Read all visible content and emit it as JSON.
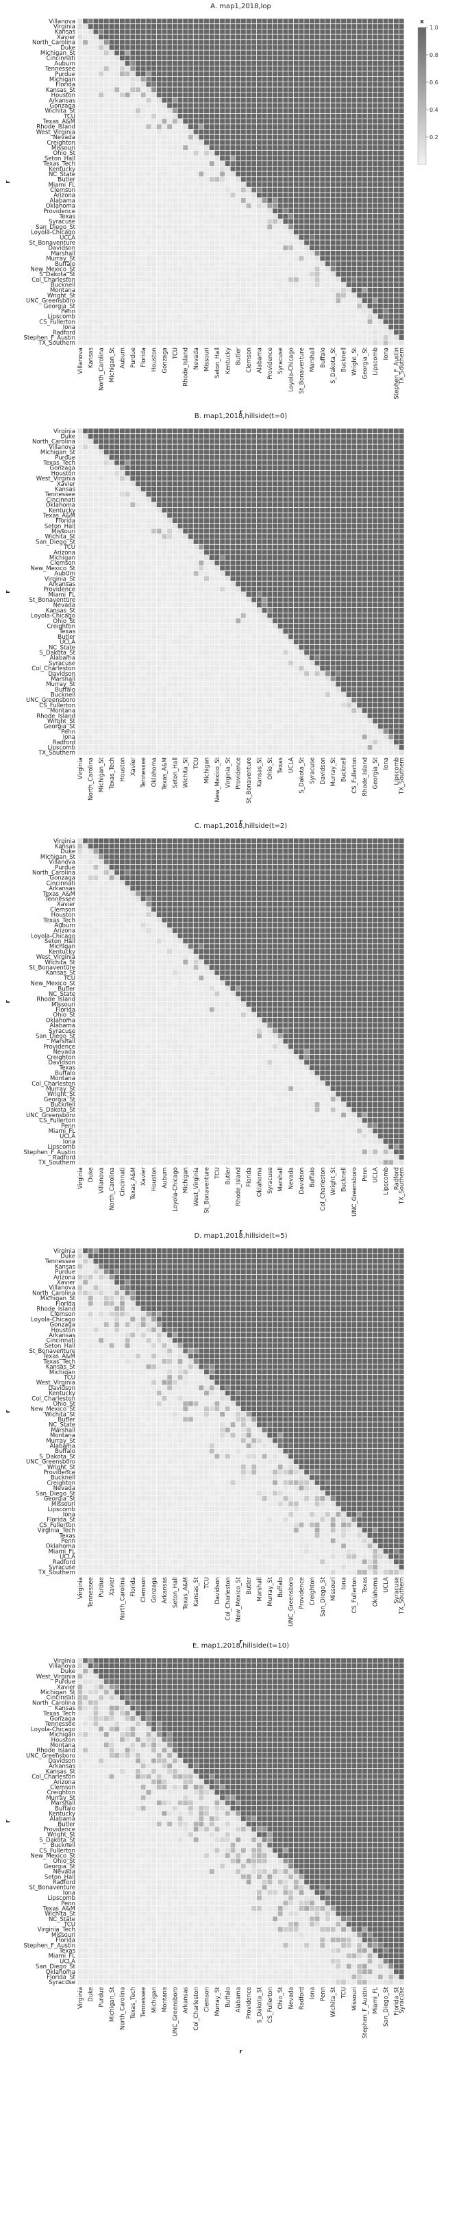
{
  "figure": {
    "colorbar": {
      "label": "x",
      "ticks": [
        "1.0",
        "0.8",
        "0.6",
        "0.4",
        "0.2"
      ],
      "tick_values": [
        1.0,
        0.8,
        0.6,
        0.4,
        0.2
      ],
      "color_low": "#f2f2f2",
      "color_high": "#666666"
    }
  },
  "chart_data": [
    {
      "type": "heatmap",
      "title": "A. map1,2018,lop",
      "xlabel": "r",
      "ylabel": "r",
      "vlim": [
        0,
        1
      ],
      "fuzz": 0.3,
      "categories": [
        "Villanova",
        "Virginia",
        "Kansas",
        "Xavier",
        "North_Carolina",
        "Duke",
        "Michigan_St",
        "Cincinnati",
        "Auburn",
        "Tennessee",
        "Purdue",
        "Michigan",
        "Florida",
        "Kansas_St",
        "Houston",
        "Arkansas",
        "Gonzaga",
        "Wichita_St",
        "TCU",
        "Texas_A&M",
        "Rhode_Island",
        "West_Virginia",
        "Nevada",
        "Creighton",
        "Missouri",
        "Ohio_St",
        "Seton_Hall",
        "Texas_Tech",
        "Kentucky",
        "NC_State",
        "Butler",
        "Miami_FL",
        "Clemson",
        "Arizona",
        "Alabama",
        "Oklahoma",
        "Providence",
        "Texas",
        "Syracuse",
        "San_Diego_St",
        "Loyola-Chicago",
        "UCLA",
        "St_Bonaventure",
        "Davidson",
        "Marshall",
        "Murray_St",
        "Buffalo",
        "New_Mexico_St",
        "S_Dakota_St",
        "Col_Charleston",
        "Bucknell",
        "Montana",
        "Wright_St",
        "UNC_Greensboro",
        "Georgia_St",
        "Penn",
        "Lipscomb",
        "CS_Fullerton",
        "Iona",
        "Radford",
        "Stephen_F_Austin",
        "TX_Southern"
      ],
      "x_tick_labels": [
        "Villanova",
        "Kansas",
        "North_Carolina",
        "Michigan_St",
        "Auburn",
        "Purdue",
        "Florida",
        "Houston",
        "Gonzaga",
        "TCU",
        "Rhode_Island",
        "Nevada",
        "Missouri",
        "Seton_Hall",
        "Kentucky",
        "Butler",
        "Clemson",
        "Alabama",
        "Providence",
        "Syracuse",
        "Loyola-Chicago",
        "St_Bonaventure",
        "Marshall",
        "Buffalo",
        "S_Dakota_St",
        "Bucknell",
        "Wright_St",
        "Georgia_St",
        "Lipscomb",
        "Iona",
        "Stephen_F_Austin",
        "TX_Southern"
      ],
      "y_tick_labels": [
        "Villanova",
        "Virginia",
        "Kansas",
        "Xavier",
        "North_Carolina",
        "Duke",
        "Michigan_St",
        "Cincinnati",
        "Auburn",
        "Tennessee",
        "Purdue",
        "Michigan",
        "Florida",
        "Kansas_St",
        "Houston",
        "Arkansas",
        "Gonzaga",
        "Wichita_St",
        "TCU",
        "Texas_A&M",
        "Rhode_Island",
        "West_Virginia",
        "Nevada",
        "Creighton",
        "Missouri",
        "Ohio_St",
        "Seton_Hall",
        "Texas_Tech",
        "Kentucky",
        "NC_State",
        "Butler",
        "Miami_FL",
        "Clemson",
        "Arizona",
        "Alabama",
        "Oklahoma",
        "Providence",
        "Texas",
        "Syracuse",
        "San_Diego_St",
        "Loyola-Chicago",
        "UCLA",
        "St_Bonaventure",
        "Davidson",
        "Marshall",
        "Murray_St",
        "Buffalo",
        "New_Mexico_St",
        "S_Dakota_St",
        "Col_Charleston",
        "Bucknell",
        "Montana",
        "Wright_St",
        "UNC_Greensboro",
        "Georgia_St",
        "Penn",
        "Lipscomb",
        "CS_Fullerton",
        "Iona",
        "Radford",
        "Stephen_F_Austin",
        "TX_Southern"
      ]
    },
    {
      "type": "heatmap",
      "title": "B. map1,2018,hillside(t=0)",
      "xlabel": "r",
      "ylabel": "r",
      "vlim": [
        0,
        1
      ],
      "fuzz": 0.15,
      "categories": [
        "Virginia",
        "Duke",
        "North_Carolina",
        "Villanova",
        "Michigan_St",
        "Purdue",
        "Texas_Tech",
        "Gonzaga",
        "Houston",
        "West_Virginia",
        "Xavier",
        "Kansas",
        "Tennessee",
        "Cincinnati",
        "Oklahoma",
        "Kentucky",
        "Texas_A&M",
        "Florida",
        "Seton_Hall",
        "Missouri",
        "Wichita_St",
        "San_Diego_St",
        "TCU",
        "Arizona",
        "Michigan",
        "Clemson",
        "New_Mexico_St",
        "Auburn",
        "Virginia_St",
        "Arkansas",
        "Providence",
        "Miami_FL",
        "St_Bonaventure",
        "Nevada",
        "Kansas_St",
        "Loyola-Chicago",
        "Ohio_St",
        "Creighton",
        "Texas",
        "Butler",
        "UCLA",
        "NC_State",
        "S_Dakota_St",
        "Alabama",
        "Syracuse",
        "Col_Charleston",
        "Davidson",
        "Marshall",
        "Murray_St",
        "Buffalo",
        "Bucknell",
        "UNC_Greensboro",
        "CS_Fullerton",
        "Montana",
        "Rhode_Island",
        "Wright_St",
        "Georgia_St",
        "Penn",
        "Iona",
        "Radford",
        "Lipscomb",
        "TX_Southern"
      ],
      "x_tick_labels": [
        "Virginia",
        "North_Carolina",
        "Michigan_St",
        "Texas_Tech",
        "Houston",
        "Xavier",
        "Tennessee",
        "Oklahoma",
        "Texas_A&M",
        "Seton_Hall",
        "Wichita_St",
        "TCU",
        "Michigan",
        "New_Mexico_St",
        "Virginia_St",
        "Providence",
        "St_Bonaventure",
        "Kansas_St",
        "Ohio_St",
        "Texas",
        "UCLA",
        "S_Dakota_St",
        "Syracuse",
        "Davidson",
        "Murray_St",
        "Bucknell",
        "CS_Fullerton",
        "Rhode_Island",
        "Georgia_St",
        "Iona",
        "Lipscomb",
        "TX_Southern"
      ],
      "y_tick_labels": [
        "Virginia",
        "Duke",
        "North_Carolina",
        "Villanova",
        "Michigan_St",
        "Purdue",
        "Texas_Tech",
        "Gonzaga",
        "Houston",
        "West_Virginia",
        "Xavier",
        "Kansas",
        "Tennessee",
        "Cincinnati",
        "Oklahoma",
        "Kentucky",
        "Texas_A&M",
        "Florida",
        "Seton_Hall",
        "Missouri",
        "Wichita_St",
        "San_Diego_St",
        "TCU",
        "Arizona",
        "Michigan",
        "Clemson",
        "New_Mexico_St",
        "Auburn",
        "Virginia_St",
        "Arkansas",
        "Providence",
        "Miami_FL",
        "St_Bonaventure",
        "Nevada",
        "Kansas_St",
        "Loyola-Chicago",
        "Ohio_St",
        "Creighton",
        "Texas",
        "Butler",
        "UCLA",
        "NC_State",
        "S_Dakota_St",
        "Alabama",
        "Syracuse",
        "Col_Charleston",
        "Davidson",
        "Marshall",
        "Murray_St",
        "Buffalo",
        "Bucknell",
        "UNC_Greensboro",
        "CS_Fullerton",
        "Montana",
        "Rhode_Island",
        "Wright_St",
        "Georgia_St",
        "Penn",
        "Iona",
        "Radford",
        "Lipscomb",
        "TX_Southern"
      ]
    },
    {
      "type": "heatmap",
      "title": "C. map1,2018,hillside(t=2)",
      "xlabel": "r",
      "ylabel": "r",
      "vlim": [
        0,
        1
      ],
      "fuzz": 0.2,
      "categories": [
        "Virginia",
        "Kansas",
        "Duke",
        "Michigan_St",
        "Villanova",
        "Purdue",
        "North_Carolina",
        "Gonzaga",
        "Cincinnati",
        "Arkansas",
        "Texas_A&M",
        "Tennessee",
        "Xavier",
        "Clemson",
        "Houston",
        "Texas_Tech",
        "Auburn",
        "Arizona",
        "Loyola-Chicago",
        "Seton_Hall",
        "Michigan",
        "Kentucky",
        "West_Virginia",
        "Wichita_St",
        "St_Bonaventure",
        "Kansas_St",
        "TCU",
        "New_Mexico_St",
        "Butler",
        "NC_State",
        "Rhode_Island",
        "Missouri",
        "Florida",
        "Ohio_St",
        "Oklahoma",
        "Alabama",
        "Syracuse",
        "San_Diego_St",
        "Marshall",
        "Providence",
        "Nevada",
        "Creighton",
        "Davidson",
        "Texas",
        "Buffalo",
        "Montana",
        "Col_Charleston",
        "Murray_St",
        "Wright_St",
        "Georgia_St",
        "Bucknell",
        "S_Dakota_St",
        "UNC_Greensboro",
        "CS_Fullerton",
        "Penn",
        "Miami_FL",
        "UCLA",
        "Iona",
        "Lipscomb",
        "Stephen_F_Austin",
        "Radford",
        "TX_Southern"
      ],
      "x_tick_labels": [
        "Virginia",
        "Duke",
        "Villanova",
        "North_Carolina",
        "Cincinnati",
        "Texas_A&M",
        "Xavier",
        "Houston",
        "Auburn",
        "Loyola-Chicago",
        "Michigan",
        "West_Virginia",
        "St_Bonaventure",
        "TCU",
        "Butler",
        "Rhode_Island",
        "Florida",
        "Oklahoma",
        "Syracuse",
        "Marshall",
        "Nevada",
        "Davidson",
        "Buffalo",
        "Col_Charleston",
        "Wright_St",
        "Bucknell",
        "UNC_Greensboro",
        "Penn",
        "UCLA",
        "Lipscomb",
        "Radford",
        "TX_Southern"
      ],
      "y_tick_labels": [
        "Virginia",
        "Kansas",
        "Duke",
        "Michigan_St",
        "Villanova",
        "Purdue",
        "North_Carolina",
        "Gonzaga",
        "Cincinnati",
        "Arkansas",
        "Texas_A&M",
        "Tennessee",
        "Xavier",
        "Clemson",
        "Houston",
        "Texas_Tech",
        "Auburn",
        "Arizona",
        "Loyola-Chicago",
        "Seton_Hall",
        "Michigan",
        "Kentucky",
        "West_Virginia",
        "Wichita_St",
        "St_Bonaventure",
        "Kansas_St",
        "TCU",
        "New_Mexico_St",
        "Butler",
        "NC_State",
        "Rhode_Island",
        "Missouri",
        "Florida",
        "Ohio_St",
        "Oklahoma",
        "Alabama",
        "Syracuse",
        "San_Diego_St",
        "Marshall",
        "Providence",
        "Nevada",
        "Creighton",
        "Davidson",
        "Texas",
        "Buffalo",
        "Montana",
        "Col_Charleston",
        "Murray_St",
        "Wright_St",
        "Georgia_St",
        "Bucknell",
        "S_Dakota_St",
        "UNC_Greensboro",
        "CS_Fullerton",
        "Penn",
        "Miami_FL",
        "UCLA",
        "Iona",
        "Lipscomb",
        "Stephen_F_Austin",
        "Radford",
        "TX_Southern"
      ]
    },
    {
      "type": "heatmap",
      "title": "D. map1,2018,hillside(t=5)",
      "xlabel": "r",
      "ylabel": "r",
      "vlim": [
        0,
        1
      ],
      "fuzz": 0.55,
      "categories": [
        "Virginia",
        "Duke",
        "Tennessee",
        "Kansas",
        "Purdue",
        "Arizona",
        "Xavier",
        "Villanova",
        "North_Carolina",
        "Michigan_St",
        "Florida",
        "Rhode_Island",
        "Clemson",
        "Loyola-Chicago",
        "Gonzaga",
        "Houston",
        "Arkansas",
        "Cincinnati",
        "Seton_Hall",
        "St_Bonaventure",
        "Texas_A&M",
        "Texas_Tech",
        "Kansas_St",
        "Michigan",
        "TCU",
        "West_Virginia",
        "Davidson",
        "Kentucky",
        "Col_Charleston",
        "Ohio_St",
        "New_Mexico_St",
        "Wichita_St",
        "Butler",
        "NC_State",
        "Marshall",
        "Montana",
        "Murray_St",
        "Alabama",
        "Buffalo",
        "S_Dakota_St",
        "UNC_Greensboro",
        "Wright_St",
        "Providence",
        "Bucknell",
        "Creighton",
        "Nevada",
        "San_Diego_St",
        "Georgia_St",
        "Missouri",
        "Lipscomb",
        "Iona",
        "Florida_St",
        "CS_Fullerton",
        "Virginia_Tech",
        "Texas",
        "Penn",
        "Oklahoma",
        "Miami_FL",
        "UCLA",
        "Radford",
        "Syracuse",
        "TX_Southern"
      ],
      "x_tick_labels": [
        "Virginia",
        "Tennessee",
        "Purdue",
        "Xavier",
        "North_Carolina",
        "Florida",
        "Clemson",
        "Gonzaga",
        "Arkansas",
        "Seton_Hall",
        "Texas_A&M",
        "Kansas_St",
        "TCU",
        "Davidson",
        "Col_Charleston",
        "New_Mexico_St",
        "Butler",
        "Marshall",
        "Murray_St",
        "Buffalo",
        "UNC_Greensboro",
        "Providence",
        "Creighton",
        "San_Diego_St",
        "Missouri",
        "Iona",
        "CS_Fullerton",
        "Texas",
        "Oklahoma",
        "UCLA",
        "Syracuse",
        "TX_Southern"
      ],
      "y_tick_labels": [
        "Virginia",
        "Duke",
        "Tennessee",
        "Kansas",
        "Purdue",
        "Arizona",
        "Xavier",
        "Villanova",
        "North_Carolina",
        "Michigan_St",
        "Florida",
        "Rhode_Island",
        "Clemson",
        "Loyola-Chicago",
        "Gonzaga",
        "Houston",
        "Arkansas",
        "Cincinnati",
        "Seton_Hall",
        "St_Bonaventure",
        "Texas_A&M",
        "Texas_Tech",
        "Kansas_St",
        "Michigan",
        "TCU",
        "West_Virginia",
        "Davidson",
        "Kentucky",
        "Col_Charleston",
        "Ohio_St",
        "New_Mexico_St",
        "Wichita_St",
        "Butler",
        "NC_State",
        "Marshall",
        "Montana",
        "Murray_St",
        "Alabama",
        "Buffalo",
        "S_Dakota_St",
        "UNC_Greensboro",
        "Wright_St",
        "Providence",
        "Bucknell",
        "Creighton",
        "Nevada",
        "San_Diego_St",
        "Georgia_St",
        "Missouri",
        "Lipscomb",
        "Iona",
        "Florida_St",
        "CS_Fullerton",
        "Virginia_Tech",
        "Texas",
        "Penn",
        "Oklahoma",
        "Miami_FL",
        "UCLA",
        "Radford",
        "Syracuse",
        "TX_Southern"
      ]
    },
    {
      "type": "heatmap",
      "title": "E. map1,2018,hillside(t=10)",
      "xlabel": "r",
      "ylabel": "r",
      "vlim": [
        0,
        1
      ],
      "fuzz": 0.65,
      "categories": [
        "Virginia",
        "Villanova",
        "Duke",
        "West_Virginia",
        "Purdue",
        "Xavier",
        "Michigan_St",
        "Cincinnati",
        "North_Carolina",
        "Kansas",
        "Texas_Tech",
        "Gonzaga",
        "Tennessee",
        "Loyola-Chicago",
        "Michigan",
        "Houston",
        "Montana",
        "Rhode_Island",
        "UNC_Greensboro",
        "Davidson",
        "Arkansas",
        "Kansas_St",
        "Col_Charleston",
        "Arizona",
        "Clemson",
        "Creighton",
        "Murray_St",
        "Marshall",
        "Buffalo",
        "Kentucky",
        "Alabama",
        "Butler",
        "Providence",
        "Wright_St",
        "S_Dakota_St",
        "Bucknell",
        "CS_Fullerton",
        "New_Mexico_St",
        "Ohio_St",
        "Georgia_St",
        "Nevada",
        "Seton_Hall",
        "Radford",
        "St_Bonaventure",
        "Iona",
        "Lipscomb",
        "Penn",
        "Texas_A&M",
        "Wichita_St",
        "NC_State",
        "TCU",
        "Virginia_Tech",
        "Missouri",
        "Florida",
        "Stephen_F_Austin",
        "Texas",
        "Miami_FL",
        "UCLA",
        "San_Diego_St",
        "Oklahoma",
        "Florida_St",
        "Syracuse"
      ],
      "x_tick_labels": [
        "Virginia",
        "Duke",
        "Purdue",
        "Michigan_St",
        "North_Carolina",
        "Texas_Tech",
        "Tennessee",
        "Michigan",
        "Montana",
        "UNC_Greensboro",
        "Arkansas",
        "Col_Charleston",
        "Clemson",
        "Murray_St",
        "Buffalo",
        "Alabama",
        "Providence",
        "S_Dakota_St",
        "CS_Fullerton",
        "Ohio_St",
        "Nevada",
        "Radford",
        "Iona",
        "Penn",
        "Wichita_St",
        "TCU",
        "Missouri",
        "Stephen_F_Austin",
        "Miami_FL",
        "San_Diego_St",
        "Florida_St",
        "Syracuse"
      ],
      "y_tick_labels": [
        "Virginia",
        "Villanova",
        "Duke",
        "West_Virginia",
        "Purdue",
        "Xavier",
        "Michigan_St",
        "Cincinnati",
        "North_Carolina",
        "Kansas",
        "Texas_Tech",
        "Gonzaga",
        "Tennessee",
        "Loyola-Chicago",
        "Michigan",
        "Houston",
        "Montana",
        "Rhode_Island",
        "UNC_Greensboro",
        "Davidson",
        "Arkansas",
        "Kansas_St",
        "Col_Charleston",
        "Arizona",
        "Clemson",
        "Creighton",
        "Murray_St",
        "Marshall",
        "Buffalo",
        "Kentucky",
        "Alabama",
        "Butler",
        "Providence",
        "Wright_St",
        "S_Dakota_St",
        "Bucknell",
        "CS_Fullerton",
        "New_Mexico_St",
        "Ohio_St",
        "Georgia_St",
        "Nevada",
        "Seton_Hall",
        "Radford",
        "St_Bonaventure",
        "Iona",
        "Lipscomb",
        "Penn",
        "Texas_A&M",
        "Wichita_St",
        "NC_State",
        "TCU",
        "Virginia_Tech",
        "Missouri",
        "Florida",
        "Stephen_F_Austin",
        "Texas",
        "Miami_FL",
        "UCLA",
        "San_Diego_St",
        "Oklahoma",
        "Florida_St",
        "Syracuse"
      ]
    }
  ]
}
